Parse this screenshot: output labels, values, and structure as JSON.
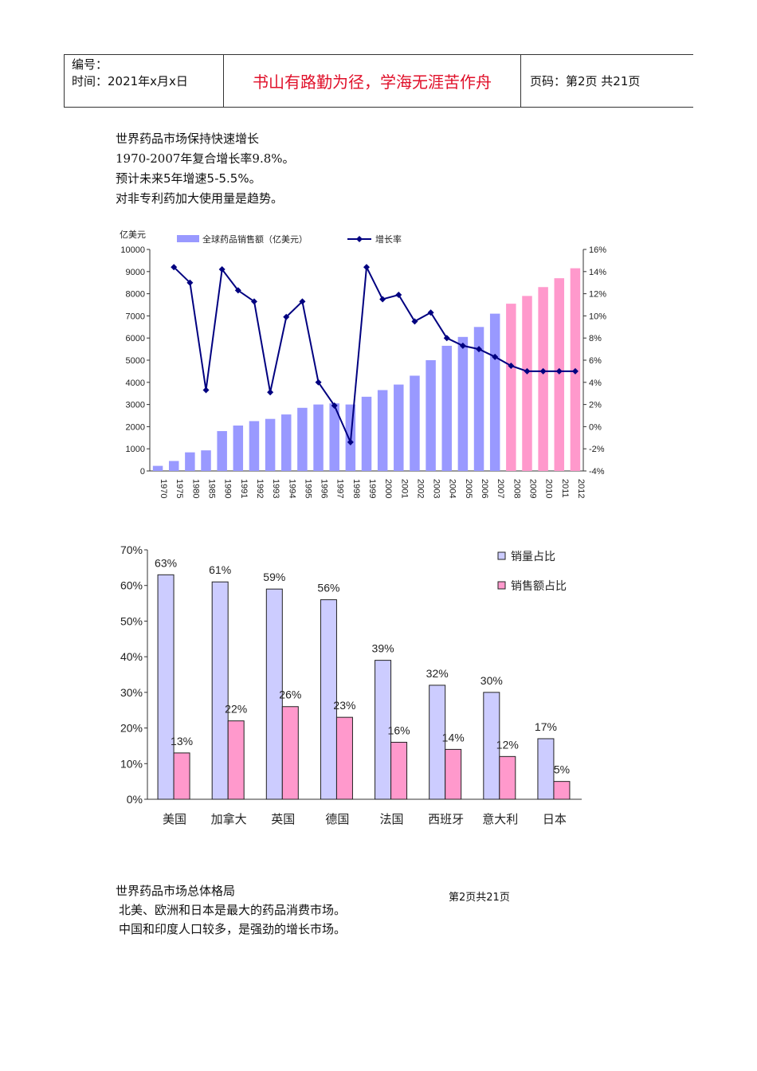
{
  "header": {
    "number_label": "编号：",
    "date_label": "时间：2021年x月x日",
    "motto": "书山有路勤为径，学海无涯苦作舟",
    "page_label": "页码：第2页 共21页"
  },
  "intro": {
    "line1": "世界药品市场保持快速增长",
    "line2": "1970-2007年复合增长率9.8%。",
    "line3": "预计未来5年增速5-5.5%。",
    "line4": "对非专利药加大使用量是趋势。"
  },
  "chart_data": [
    {
      "type": "bar",
      "ylabel": "亿美元",
      "categories": [
        "1970",
        "1975",
        "1980",
        "1985",
        "1990",
        "1991",
        "1992",
        "1993",
        "1994",
        "1995",
        "1996",
        "1997",
        "1998",
        "1999",
        "2000",
        "2001",
        "2002",
        "2003",
        "2004",
        "2005",
        "2006",
        "2007",
        "2008",
        "2009",
        "2010",
        "2011",
        "2012"
      ],
      "ylim": [
        0,
        10000
      ],
      "y_ticks": [
        "0",
        "1000",
        "2000",
        "3000",
        "4000",
        "5000",
        "6000",
        "7000",
        "8000",
        "9000",
        "10000"
      ],
      "y2lim": [
        -4,
        16
      ],
      "y2_ticks": [
        "-4%",
        "-2%",
        "0%",
        "2%",
        "4%",
        "6%",
        "8%",
        "10%",
        "12%",
        "14%",
        "16%"
      ],
      "legend_position": "top",
      "series": [
        {
          "name": "全球药品销售额（亿美元）",
          "kind": "bar",
          "values": [
            230,
            450,
            840,
            930,
            1800,
            2050,
            2250,
            2350,
            2550,
            2850,
            3000,
            3050,
            3000,
            3350,
            3650,
            3900,
            4300,
            5000,
            5650,
            6050,
            6500,
            7100,
            7550,
            7900,
            8300,
            8700,
            9150
          ],
          "color": "#9999ff",
          "forecast_color": "#ff99cc",
          "forecast_from_index": 22
        },
        {
          "name": "增长率",
          "kind": "line",
          "axis": "right",
          "color": "#000080",
          "values": [
            null,
            14.4,
            13.0,
            3.3,
            14.2,
            12.3,
            11.3,
            3.1,
            9.9,
            11.3,
            4.0,
            1.9,
            -1.4,
            14.4,
            11.5,
            11.9,
            9.5,
            10.3,
            8.0,
            7.3,
            7.0,
            6.3,
            5.5,
            5.0,
            5.0,
            5.0,
            5.0
          ]
        }
      ]
    },
    {
      "type": "bar",
      "categories": [
        "美国",
        "加拿大",
        "英国",
        "德国",
        "法国",
        "西班牙",
        "意大利",
        "日本"
      ],
      "ylim": [
        0,
        70
      ],
      "y_ticks": [
        "0%",
        "10%",
        "20%",
        "30%",
        "40%",
        "50%",
        "60%",
        "70%"
      ],
      "legend_position": "top-right",
      "series": [
        {
          "name": "销量占比",
          "color": "#ccccff",
          "values": [
            63,
            61,
            59,
            56,
            39,
            32,
            30,
            17
          ],
          "labels": [
            "63%",
            "61%",
            "59%",
            "56%",
            "39%",
            "32%",
            "30%",
            "17%"
          ]
        },
        {
          "name": "销售额占比",
          "color": "#ff99cc",
          "values": [
            13,
            22,
            26,
            23,
            16,
            14,
            12,
            5
          ],
          "labels": [
            "13%",
            "22%",
            "26%",
            "23%",
            "16%",
            "14%",
            "12%",
            "5%"
          ]
        }
      ]
    }
  ],
  "outro": {
    "line1": "世界药品市场总体格局",
    "line2": "北美、欧洲和日本是最大的药品消费市场。",
    "line3": "中国和印度人口较多，是强劲的增长市场。"
  },
  "footer": {
    "page_number": "第2页共21页"
  }
}
